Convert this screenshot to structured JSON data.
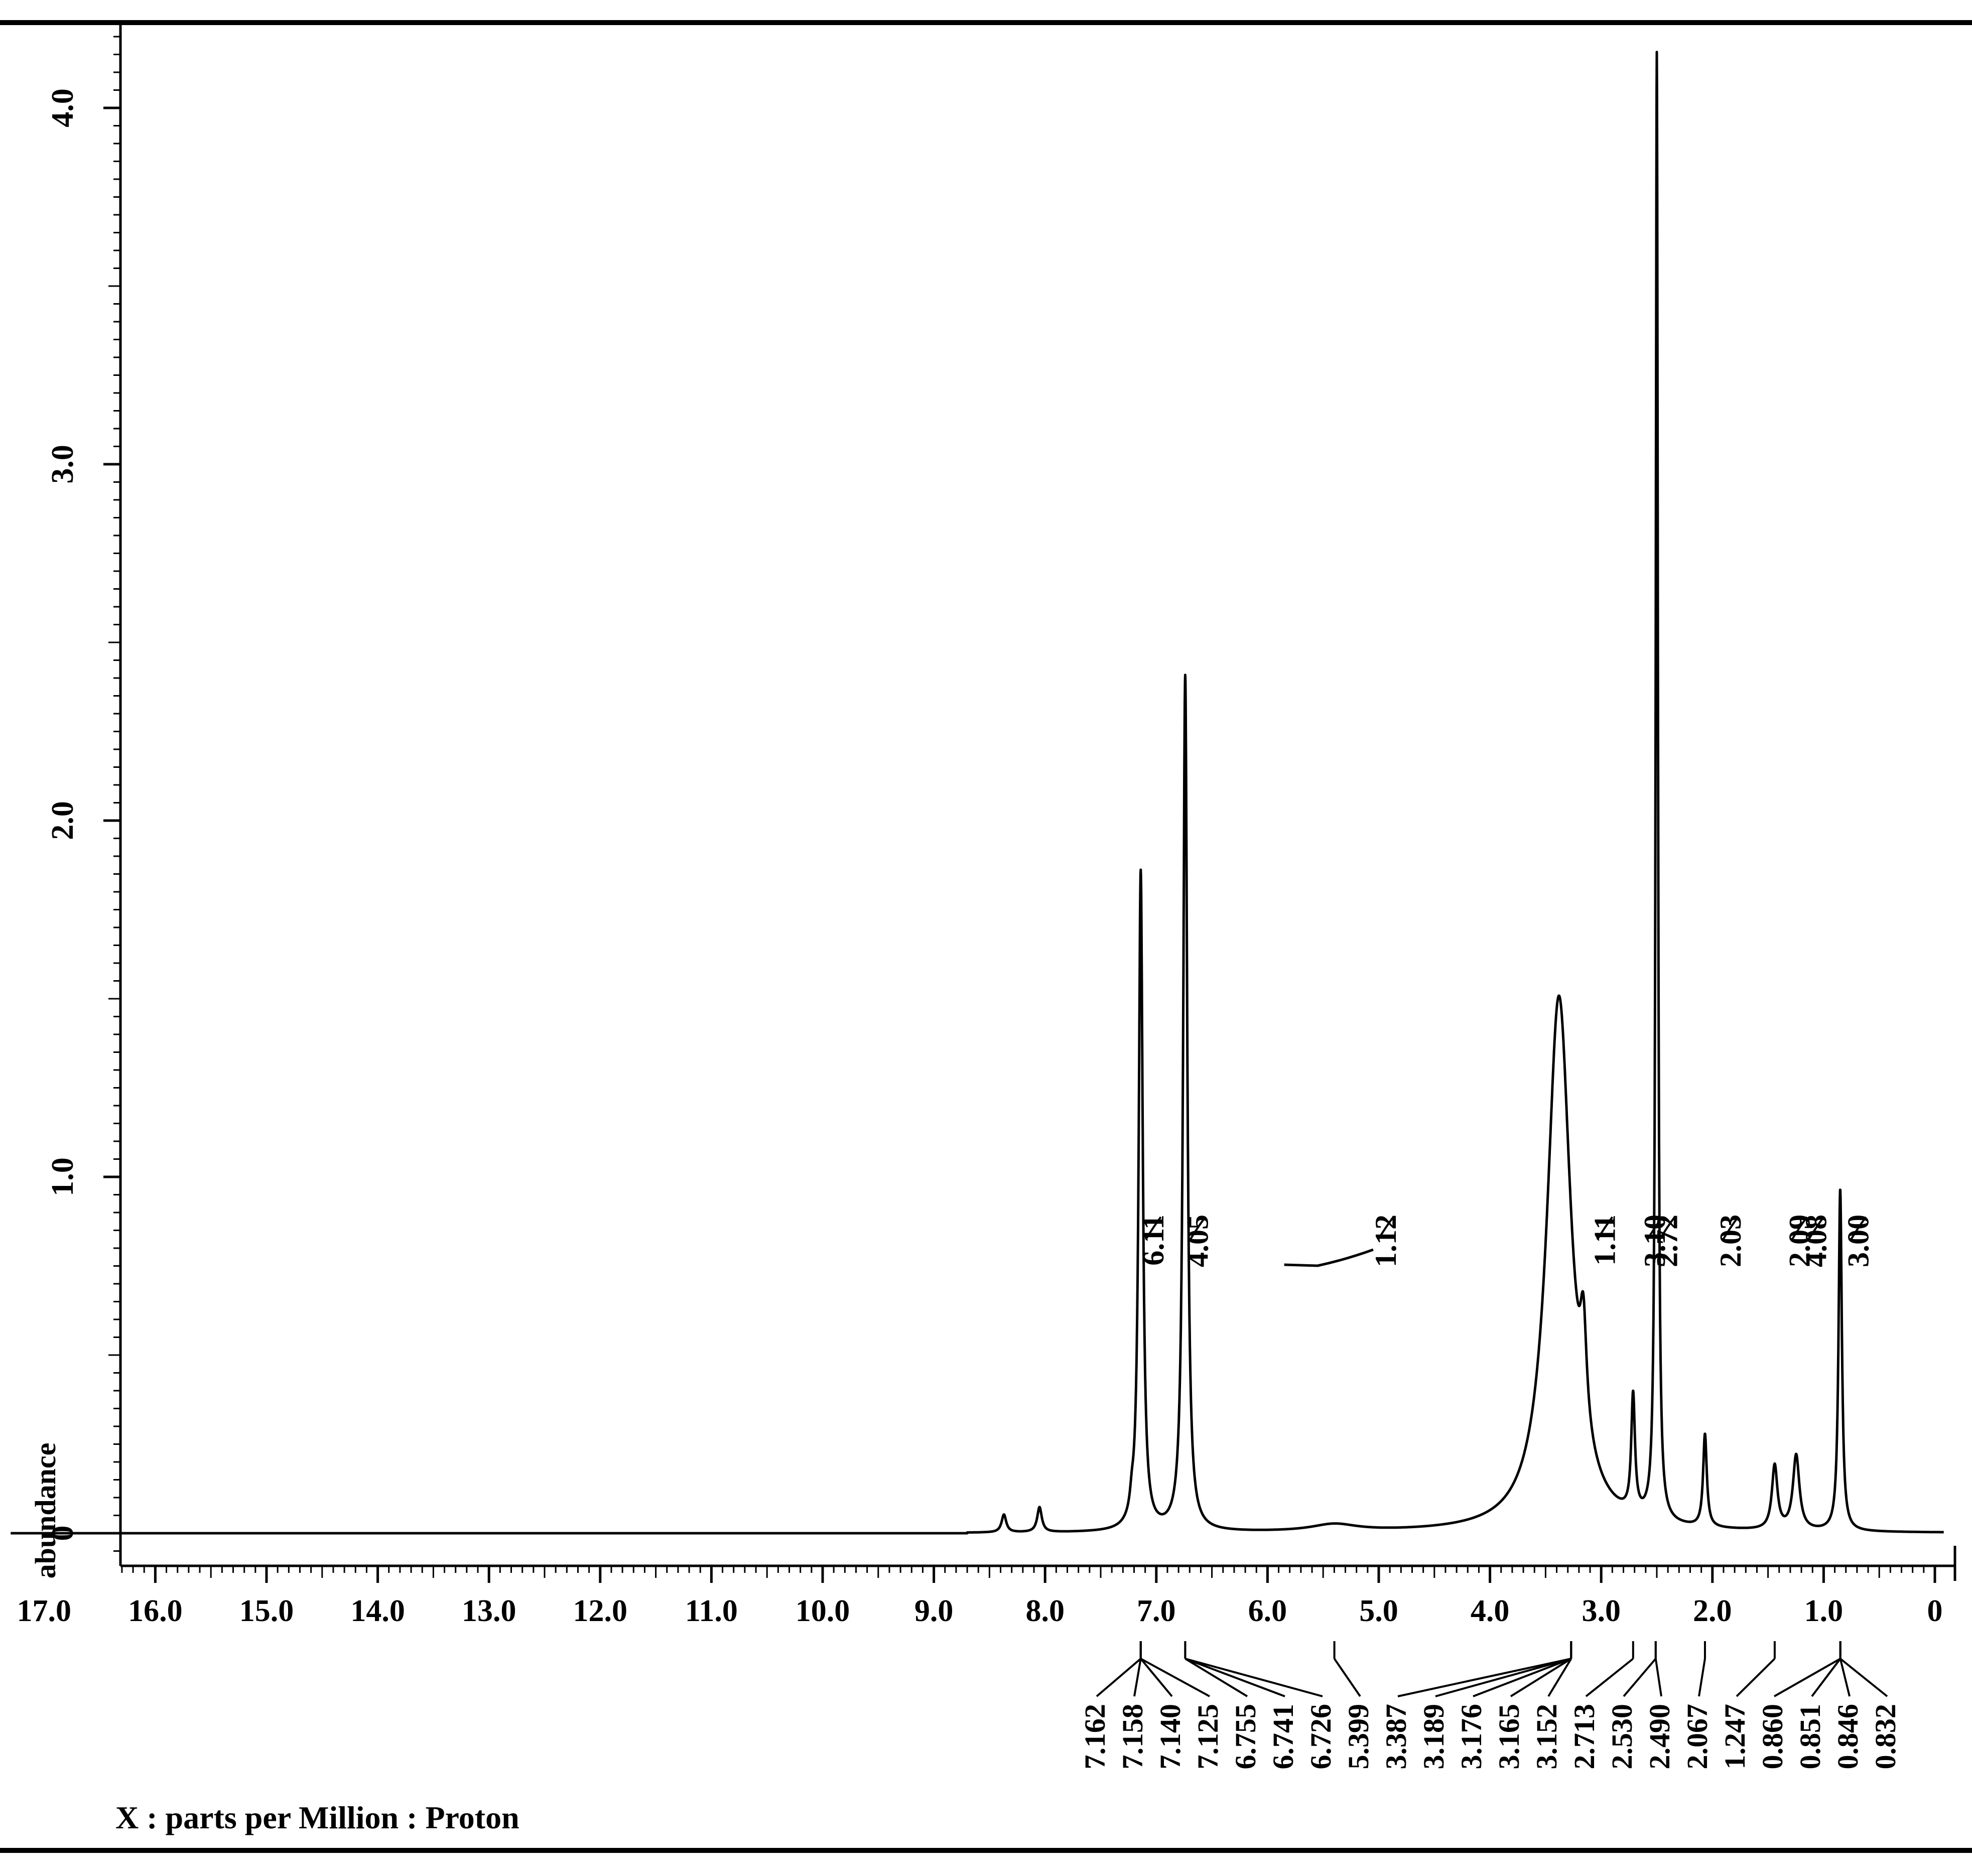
{
  "chart_data": {
    "type": "line",
    "title": "",
    "xlabel": "X : parts per Million : Proton",
    "ylabel": "abundance",
    "xlim": [
      17.3,
      -0.1
    ],
    "ylim": [
      -0.1,
      4.2
    ],
    "x_reversed": true,
    "x_ticks": [
      {
        "value": 17,
        "label": "17.0"
      },
      {
        "value": 16,
        "label": "16.0"
      },
      {
        "value": 15,
        "label": "15.0"
      },
      {
        "value": 14,
        "label": "14.0"
      },
      {
        "value": 13,
        "label": "13.0"
      },
      {
        "value": 12,
        "label": "12.0"
      },
      {
        "value": 11,
        "label": "11.0"
      },
      {
        "value": 10,
        "label": "10.0"
      },
      {
        "value": 9,
        "label": "9.0"
      },
      {
        "value": 8,
        "label": "8.0"
      },
      {
        "value": 7,
        "label": "7.0"
      },
      {
        "value": 6,
        "label": "6.0"
      },
      {
        "value": 5,
        "label": "5.0"
      },
      {
        "value": 4,
        "label": "4.0"
      },
      {
        "value": 3,
        "label": "3.0"
      },
      {
        "value": 2,
        "label": "2.0"
      },
      {
        "value": 1,
        "label": "1.0"
      },
      {
        "value": 0,
        "label": "0"
      }
    ],
    "y_ticks": [
      {
        "value": 0,
        "label": "0"
      },
      {
        "value": 1,
        "label": "1.0"
      },
      {
        "value": 2,
        "label": "2.0"
      },
      {
        "value": 3,
        "label": "3.0"
      },
      {
        "value": 4,
        "label": "4.0"
      }
    ],
    "peaks": [
      {
        "ppm": 8.37,
        "height": 0.05,
        "width": 0.025
      },
      {
        "ppm": 8.05,
        "height": 0.07,
        "width": 0.025
      },
      {
        "ppm": 7.22,
        "height": 0.04,
        "width": 0.02
      },
      {
        "ppm": 7.14,
        "height": 1.85,
        "width": 0.022
      },
      {
        "ppm": 6.74,
        "height": 2.4,
        "width": 0.022
      },
      {
        "ppm": 5.4,
        "height": 0.02,
        "width": 0.25
      },
      {
        "ppm": 3.38,
        "height": 1.5,
        "width": 0.13
      },
      {
        "ppm": 3.16,
        "height": 0.28,
        "width": 0.035
      },
      {
        "ppm": 2.713,
        "height": 0.33,
        "width": 0.02
      },
      {
        "ppm": 2.5,
        "height": 4.12,
        "width": 0.012
      },
      {
        "ppm": 2.067,
        "height": 0.26,
        "width": 0.02
      },
      {
        "ppm": 1.44,
        "height": 0.18,
        "width": 0.03
      },
      {
        "ppm": 1.247,
        "height": 0.21,
        "width": 0.035
      },
      {
        "ppm": 0.851,
        "height": 0.96,
        "width": 0.018
      }
    ],
    "integrals": [
      {
        "label": "6.11",
        "ppm": 7.14
      },
      {
        "label": "4.05",
        "ppm": 6.74
      },
      {
        "label": "1.12",
        "ppm": 5.05
      },
      {
        "label": "1.11",
        "ppm": 3.08
      },
      {
        "label": "3.10",
        "ppm": 2.63
      },
      {
        "label": "2.72",
        "ppm": 2.52
      },
      {
        "label": "2.03",
        "ppm": 1.95
      },
      {
        "label": "2.09",
        "ppm": 1.33
      },
      {
        "label": "4.08",
        "ppm": 1.18
      },
      {
        "label": "3.00",
        "ppm": 0.8
      }
    ],
    "peak_groups": [
      {
        "labels": [
          "7.162",
          "7.158",
          "7.140",
          "7.125"
        ],
        "ppm": 7.14
      },
      {
        "labels": [
          "6.755",
          "6.741",
          "6.726"
        ],
        "ppm": 6.74
      },
      {
        "labels": [
          "5.399"
        ],
        "ppm": 5.399
      },
      {
        "labels": [
          "3.387",
          "3.189",
          "3.176",
          "3.165",
          "3.152"
        ],
        "ppm": 3.27
      },
      {
        "labels": [
          "2.713"
        ],
        "ppm": 2.713
      },
      {
        "labels": [
          "2.530",
          "2.490"
        ],
        "ppm": 2.51
      },
      {
        "labels": [
          "2.067"
        ],
        "ppm": 2.067
      },
      {
        "labels": [
          "1.247"
        ],
        "ppm": 1.44
      },
      {
        "labels": [
          "0.860",
          "0.851",
          "0.846",
          "0.832"
        ],
        "ppm": 0.85
      }
    ]
  }
}
